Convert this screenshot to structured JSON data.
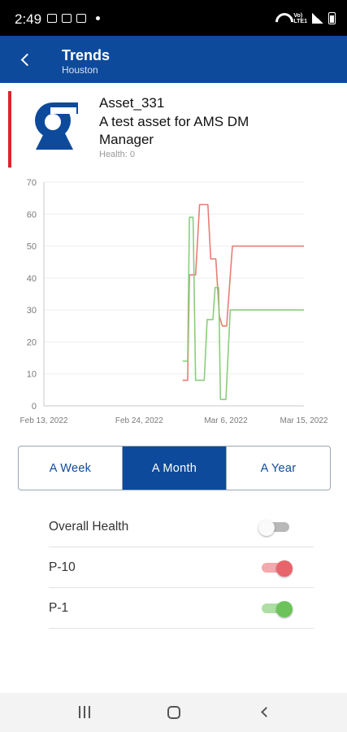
{
  "status_bar": {
    "time": "2:49",
    "icons": [
      "image-icon",
      "cast-icon",
      "cast-icon",
      "dot-icon"
    ],
    "right_icons": [
      "wifi-icon",
      "lte-icon",
      "signal-icon",
      "battery-icon"
    ],
    "lte_label_top": "Vo)",
    "lte_label_bottom": "LTE1"
  },
  "app_bar": {
    "title": "Trends",
    "subtitle": "Houston",
    "back_icon": "chevron-left-icon",
    "color": "#0d4a9b"
  },
  "asset": {
    "name": "Asset_331",
    "description": "A test asset for AMS DM Manager",
    "health": "Health: 0",
    "logo_icon": "pump-icon",
    "accent_color": "#e0232b",
    "logo_color": "#0d4a9b"
  },
  "chart_data": {
    "type": "line",
    "title": "",
    "xlabel": "",
    "ylabel": "",
    "ylim": [
      0,
      70
    ],
    "yticks": [
      0,
      10,
      20,
      30,
      40,
      50,
      60,
      70
    ],
    "xlim": [
      "2022-02-13",
      "2022-03-15"
    ],
    "xticks": [
      {
        "date": "2022-02-13",
        "label": "Feb 13, 2022"
      },
      {
        "date": "2022-02-24",
        "label": "Feb 24, 2022"
      },
      {
        "date": "2022-03-06",
        "label": "Mar 6, 2022"
      },
      {
        "date": "2022-03-15",
        "label": "Mar 15, 2022"
      }
    ],
    "grid": true,
    "legend": "none",
    "series": [
      {
        "key": "p10",
        "color": "#e87d75",
        "points": [
          [
            "2022-03-01T00:00",
            8
          ],
          [
            "2022-03-01T14:00",
            8
          ],
          [
            "2022-03-01T19:00",
            41
          ],
          [
            "2022-03-02T12:00",
            41
          ],
          [
            "2022-03-02T23:00",
            63
          ],
          [
            "2022-03-03T22:00",
            63
          ],
          [
            "2022-03-04T06:00",
            46
          ],
          [
            "2022-03-04T20:00",
            46
          ],
          [
            "2022-03-05T06:00",
            28
          ],
          [
            "2022-03-05T14:00",
            25
          ],
          [
            "2022-03-06T02:00",
            25
          ],
          [
            "2022-03-06T18:00",
            50
          ],
          [
            "2022-03-15T00:00",
            50
          ]
        ]
      },
      {
        "key": "p1",
        "color": "#8acd7c",
        "points": [
          [
            "2022-03-01T00:00",
            14
          ],
          [
            "2022-03-01T14:00",
            14
          ],
          [
            "2022-03-01T19:00",
            59
          ],
          [
            "2022-03-02T05:00",
            59
          ],
          [
            "2022-03-02T12:00",
            8
          ],
          [
            "2022-03-03T12:00",
            8
          ],
          [
            "2022-03-03T20:00",
            27
          ],
          [
            "2022-03-04T12:00",
            27
          ],
          [
            "2022-03-04T18:00",
            37
          ],
          [
            "2022-03-05T04:00",
            37
          ],
          [
            "2022-03-05T09:00",
            2
          ],
          [
            "2022-03-06T00:00",
            2
          ],
          [
            "2022-03-06T12:00",
            30
          ],
          [
            "2022-03-15T00:00",
            30
          ]
        ]
      }
    ]
  },
  "range_selector": {
    "options": [
      "A Week",
      "A Month",
      "A Year"
    ],
    "selected": "A Month"
  },
  "toggles": [
    {
      "label": "Overall Health",
      "on": false,
      "color": "#b8b8b8"
    },
    {
      "label": "P-10",
      "on": true,
      "color": "#e9636a"
    },
    {
      "label": "P-1",
      "on": true,
      "color": "#6cc35a"
    }
  ],
  "nav_bar": {
    "icons": [
      "recent-apps-icon",
      "home-icon",
      "back-icon"
    ]
  }
}
